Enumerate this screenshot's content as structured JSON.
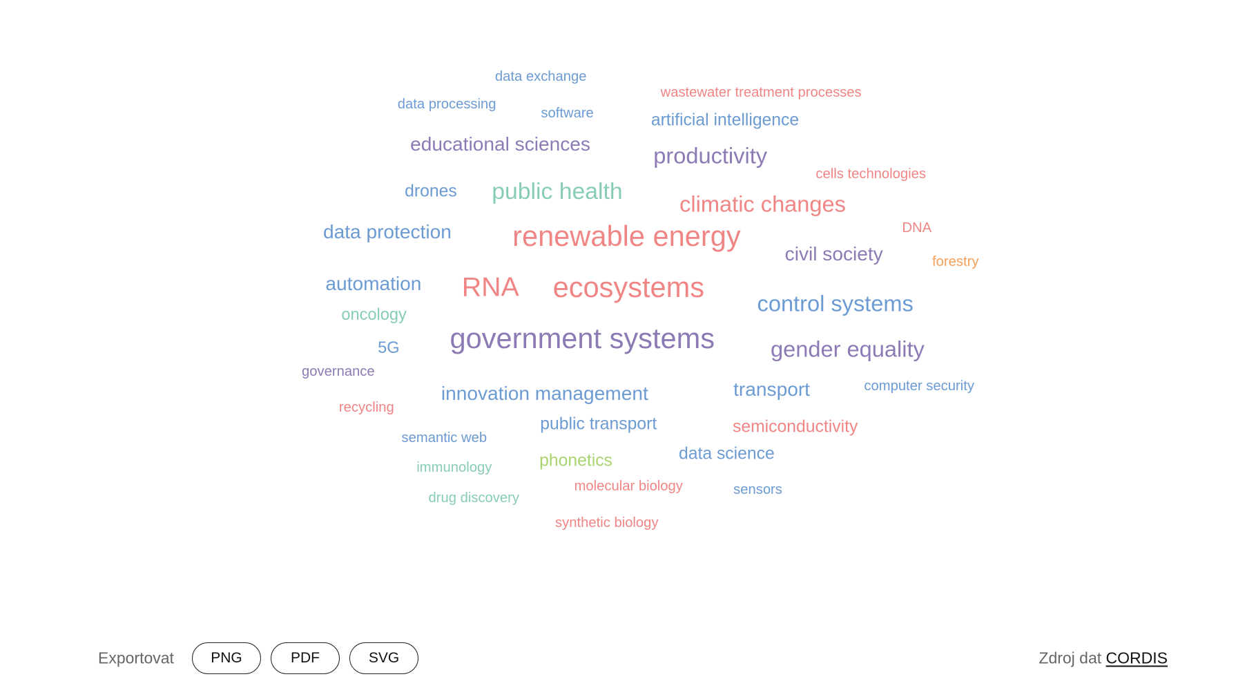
{
  "colors": {
    "blue": "#6b9bd2",
    "red": "#f08585",
    "purple": "#8c7ab4",
    "teal": "#87cdb5",
    "green": "#a9d46f",
    "orange": "#f5a05a"
  },
  "words": [
    {
      "text": "data exchange",
      "color": "blue"
    },
    {
      "text": "wastewater treatment processes",
      "color": "red"
    },
    {
      "text": "data processing",
      "color": "blue"
    },
    {
      "text": "software",
      "color": "blue"
    },
    {
      "text": "artificial intelligence",
      "color": "blue"
    },
    {
      "text": "educational sciences",
      "color": "purple"
    },
    {
      "text": "productivity",
      "color": "purple"
    },
    {
      "text": "cells technologies",
      "color": "red"
    },
    {
      "text": "drones",
      "color": "blue"
    },
    {
      "text": "public health",
      "color": "teal"
    },
    {
      "text": "climatic changes",
      "color": "red"
    },
    {
      "text": "data protection",
      "color": "blue"
    },
    {
      "text": "renewable energy",
      "color": "red"
    },
    {
      "text": "DNA",
      "color": "red"
    },
    {
      "text": "civil society",
      "color": "purple"
    },
    {
      "text": "forestry",
      "color": "orange"
    },
    {
      "text": "automation",
      "color": "blue"
    },
    {
      "text": "RNA",
      "color": "red"
    },
    {
      "text": "ecosystems",
      "color": "red"
    },
    {
      "text": "control systems",
      "color": "blue"
    },
    {
      "text": "oncology",
      "color": "teal"
    },
    {
      "text": "government systems",
      "color": "purple"
    },
    {
      "text": "5G",
      "color": "blue"
    },
    {
      "text": "gender equality",
      "color": "purple"
    },
    {
      "text": "governance",
      "color": "purple"
    },
    {
      "text": "innovation management",
      "color": "blue"
    },
    {
      "text": "transport",
      "color": "blue"
    },
    {
      "text": "computer security",
      "color": "blue"
    },
    {
      "text": "recycling",
      "color": "red"
    },
    {
      "text": "public transport",
      "color": "blue"
    },
    {
      "text": "semiconductivity",
      "color": "red"
    },
    {
      "text": "semantic web",
      "color": "blue"
    },
    {
      "text": "phonetics",
      "color": "green"
    },
    {
      "text": "data science",
      "color": "blue"
    },
    {
      "text": "immunology",
      "color": "teal"
    },
    {
      "text": "molecular biology",
      "color": "red"
    },
    {
      "text": "sensors",
      "color": "blue"
    },
    {
      "text": "drug discovery",
      "color": "teal"
    },
    {
      "text": "synthetic biology",
      "color": "red"
    }
  ],
  "footer": {
    "export_label": "Exportovat",
    "buttons": [
      "PNG",
      "PDF",
      "SVG"
    ],
    "source_label": "Zdroj dat",
    "source_link": "CORDIS"
  }
}
